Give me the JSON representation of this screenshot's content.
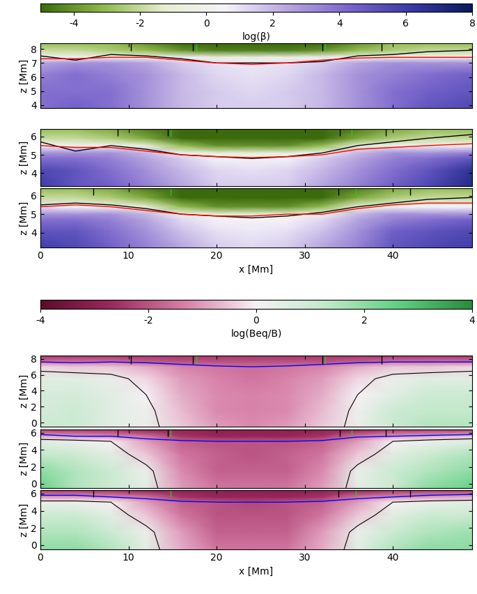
{
  "chart_data": [
    {
      "type": "heatmap",
      "colorbar": {
        "label": "log(β)",
        "range": [
          -5,
          8
        ],
        "ticks": [
          -4,
          -2,
          0,
          2,
          4,
          6,
          8
        ]
      },
      "ylabel": "z [Mm]",
      "tick_labels": "y",
      "xlim": [
        0,
        49
      ],
      "xticks": [
        0,
        10,
        20,
        30,
        40
      ],
      "ylim": [
        3.8,
        8.4
      ],
      "yticks": [
        4,
        5,
        6,
        7,
        8
      ],
      "x": [
        0,
        4,
        8,
        12,
        16,
        20,
        24,
        28,
        32,
        36,
        40,
        44,
        49
      ],
      "y": [
        3.8,
        5.0,
        6.2,
        7.0,
        7.4,
        7.9,
        8.4
      ],
      "values": [
        [
          4,
          4.5,
          4,
          3,
          2,
          1.5,
          1.5,
          1.5,
          2,
          3,
          4,
          5,
          5.5
        ],
        [
          4,
          4,
          4,
          3,
          2,
          1.5,
          1.2,
          1.5,
          2,
          3,
          4,
          4.5,
          5
        ],
        [
          3.5,
          4,
          3.5,
          3,
          2,
          1.2,
          1,
          1.2,
          2,
          3,
          3.5,
          4,
          4.5
        ],
        [
          2.5,
          3,
          3,
          2.5,
          1.5,
          1,
          0.8,
          1,
          1.5,
          2.5,
          3,
          3,
          3
        ],
        [
          0,
          0,
          0,
          0,
          0,
          -0.5,
          -0.5,
          -0.5,
          0,
          0,
          0,
          0,
          0
        ],
        [
          -2,
          -2,
          -2.5,
          -3,
          -4,
          -4.5,
          -4.5,
          -4.5,
          -4,
          -3,
          -2.5,
          -2,
          -2
        ],
        [
          -3,
          -3,
          -3,
          -4,
          -5,
          -5,
          -5,
          -5,
          -5,
          -4,
          -3,
          -3,
          -3
        ]
      ],
      "lines": [
        {
          "color": "black",
          "x": [
            0,
            4,
            8,
            12,
            16,
            20,
            24,
            28,
            32,
            36,
            40,
            44,
            49
          ],
          "y": [
            7.5,
            7.2,
            7.6,
            7.5,
            7.3,
            7.0,
            7.0,
            7.0,
            7.1,
            7.5,
            7.6,
            7.8,
            7.9
          ]
        },
        {
          "color": "red",
          "x": [
            0,
            4,
            8,
            12,
            16,
            20,
            24,
            28,
            32,
            36,
            40,
            44,
            49
          ],
          "y": [
            7.3,
            7.3,
            7.4,
            7.4,
            7.2,
            7.0,
            6.9,
            7.0,
            7.2,
            7.35,
            7.4,
            7.4,
            7.4
          ]
        }
      ],
      "top_marks": [
        {
          "color": "black",
          "x": [
            10.3,
            17.3,
            32.0,
            38.7
          ]
        },
        {
          "color": "#22cc22",
          "x": [
            17.7,
            32.3
          ]
        }
      ]
    },
    {
      "type": "heatmap",
      "ylabel": "z [Mm]",
      "tick_labels": "y",
      "xlim": [
        0,
        49
      ],
      "xticks": [
        0,
        10,
        20,
        30,
        40
      ],
      "ylim": [
        3.3,
        6.4
      ],
      "yticks": [
        4,
        5,
        6
      ],
      "x": [
        0,
        4,
        8,
        12,
        16,
        20,
        24,
        28,
        32,
        36,
        40,
        44,
        49
      ],
      "y": [
        3.3,
        4.2,
        4.8,
        5.1,
        5.5,
        5.9,
        6.4
      ],
      "values": [
        [
          6,
          5,
          4.5,
          3.5,
          2.5,
          1.5,
          1.5,
          1.5,
          2.5,
          3.5,
          4.5,
          5.5,
          7
        ],
        [
          5.5,
          5,
          4,
          3,
          2,
          1.2,
          1,
          1.2,
          2,
          3,
          4,
          5,
          6.5
        ],
        [
          4,
          4,
          3.5,
          2.5,
          1.5,
          0.5,
          0.3,
          0.5,
          1.5,
          2.5,
          3.5,
          4,
          5
        ],
        [
          3,
          3,
          3,
          2,
          0,
          -1,
          -1,
          -1,
          0,
          2,
          3,
          3,
          3.5
        ],
        [
          0.5,
          0,
          0,
          -1,
          -3,
          -4,
          -4,
          -4,
          -3,
          -1,
          0,
          0,
          0.5
        ],
        [
          -2,
          -2,
          -2.5,
          -3.5,
          -5,
          -5,
          -5,
          -5,
          -5,
          -3.5,
          -2.5,
          -2,
          -2
        ],
        [
          -3,
          -3,
          -3.5,
          -4.5,
          -5,
          -5,
          -5,
          -5,
          -5,
          -4.5,
          -3.5,
          -3,
          -3
        ]
      ],
      "lines": [
        {
          "color": "black",
          "x": [
            0,
            4,
            8,
            12,
            16,
            20,
            24,
            28,
            32,
            36,
            40,
            44,
            49
          ],
          "y": [
            5.7,
            5.2,
            5.5,
            5.3,
            5.0,
            4.9,
            4.8,
            4.9,
            5.1,
            5.5,
            5.7,
            5.9,
            6.1
          ]
        },
        {
          "color": "red",
          "x": [
            0,
            4,
            8,
            12,
            16,
            20,
            24,
            28,
            32,
            36,
            40,
            44,
            49
          ],
          "y": [
            5.5,
            5.4,
            5.4,
            5.2,
            5.0,
            4.9,
            4.85,
            4.9,
            5.0,
            5.3,
            5.4,
            5.5,
            5.6
          ]
        }
      ],
      "top_marks": [
        {
          "color": "black",
          "x": [
            8.8,
            14.5,
            34.0,
            39.2
          ]
        },
        {
          "color": "#22cc22",
          "x": [
            14.8,
            35.3
          ]
        }
      ]
    },
    {
      "type": "heatmap",
      "ylabel": "z [Mm]",
      "xlabel": "x [Mm]",
      "xlim": [
        0,
        49
      ],
      "xticks": [
        0,
        10,
        20,
        30,
        40
      ],
      "ylim": [
        3.2,
        6.4
      ],
      "yticks": [
        4,
        5,
        6
      ],
      "x": [
        0,
        4,
        8,
        12,
        16,
        20,
        24,
        28,
        32,
        36,
        40,
        44,
        49
      ],
      "y": [
        3.2,
        4.1,
        4.7,
        5.0,
        5.4,
        5.9,
        6.4
      ],
      "values": [
        [
          6,
          5.5,
          4.5,
          3.5,
          2.5,
          1.5,
          1.2,
          1.5,
          2.5,
          3.5,
          5,
          5.5,
          6
        ],
        [
          5,
          5,
          4,
          3,
          1.8,
          1,
          0.8,
          1,
          1.8,
          3,
          4.5,
          5,
          5.5
        ],
        [
          4,
          4,
          3.5,
          2.5,
          1.2,
          0.5,
          0.3,
          0.5,
          1.2,
          2.5,
          3.5,
          4,
          4.5
        ],
        [
          3,
          3,
          3,
          2,
          0,
          -1,
          -1,
          -1,
          0,
          2,
          3,
          3,
          3
        ],
        [
          1,
          0.5,
          0,
          -1,
          -3,
          -4,
          -4,
          -4,
          -3,
          -1,
          0,
          0.5,
          0.5
        ],
        [
          -2,
          -2,
          -2.5,
          -3.5,
          -5,
          -5,
          -5,
          -5,
          -5,
          -3.5,
          -2.5,
          -2,
          -2
        ],
        [
          -3,
          -3,
          -3.5,
          -4.5,
          -5,
          -5,
          -5,
          -5,
          -5,
          -4.5,
          -3.5,
          -3,
          -3
        ]
      ],
      "lines": [
        {
          "color": "black",
          "x": [
            0,
            4,
            8,
            12,
            16,
            20,
            24,
            28,
            32,
            36,
            40,
            44,
            49
          ],
          "y": [
            5.5,
            5.6,
            5.5,
            5.3,
            5.0,
            4.9,
            4.8,
            4.9,
            5.1,
            5.4,
            5.6,
            5.8,
            5.9
          ]
        },
        {
          "color": "red",
          "x": [
            0,
            4,
            8,
            12,
            16,
            20,
            24,
            28,
            32,
            36,
            40,
            44,
            49
          ],
          "y": [
            5.4,
            5.5,
            5.4,
            5.2,
            5.0,
            4.9,
            4.9,
            5.0,
            5.0,
            5.3,
            5.5,
            5.6,
            5.6
          ]
        }
      ],
      "top_marks": [
        {
          "color": "black",
          "x": [
            6.0,
            33.8,
            42.0
          ]
        },
        {
          "color": "#22cc22",
          "x": [
            14.8,
            35.8
          ]
        }
      ]
    },
    {
      "type": "heatmap",
      "colorbar": {
        "label": "log(Beq/B)",
        "range": [
          -4,
          4
        ],
        "ticks": [
          -4,
          -2,
          0,
          2,
          4
        ]
      },
      "ylabel": "z [Mm]",
      "tick_labels": "y",
      "contour_level": 0,
      "xlim": [
        0,
        49
      ],
      "xticks": [
        0,
        10,
        20,
        30,
        40
      ],
      "ylim": [
        -0.5,
        8.4
      ],
      "yticks": [
        0,
        2,
        4,
        6,
        8
      ],
      "x": [
        0,
        4,
        8,
        12,
        16,
        20,
        24,
        28,
        32,
        36,
        40,
        44,
        49
      ],
      "y": [
        -0.5,
        1.5,
        3.5,
        5.5,
        7.0,
        7.6,
        8.4
      ],
      "values": [
        [
          1,
          1,
          0.5,
          0.3,
          -0.5,
          -1,
          -1.2,
          -1,
          -0.5,
          0.3,
          1,
          1.5,
          1.5
        ],
        [
          0.8,
          1,
          0.5,
          0.2,
          -0.6,
          -1.2,
          -1.3,
          -1.2,
          -0.6,
          0.2,
          1,
          1.2,
          1.2
        ],
        [
          0.8,
          0.8,
          0.5,
          0,
          -0.8,
          -1.2,
          -1.3,
          -1.2,
          -0.8,
          0,
          0.5,
          1,
          1
        ],
        [
          0.5,
          0.5,
          0.3,
          -0.3,
          -1,
          -1.3,
          -1.5,
          -1.3,
          -1,
          -0.3,
          0.3,
          0.5,
          0.5
        ],
        [
          -0.3,
          -0.5,
          -0.5,
          -0.8,
          -1.3,
          -1.5,
          -1.6,
          -1.5,
          -1.3,
          -0.8,
          -0.5,
          -0.5,
          -0.3
        ],
        [
          -1.5,
          -1.5,
          -1.5,
          -1.8,
          -2,
          -2,
          -2,
          -2,
          -2,
          -1.8,
          -1.5,
          -1.5,
          -1.5
        ],
        [
          -2.5,
          -2.5,
          -2.5,
          -2.5,
          -2.5,
          -2.5,
          -2.5,
          -2.5,
          -2.5,
          -2.5,
          -2.5,
          -2.5,
          -2.5
        ]
      ],
      "lines": [
        {
          "color": "blue",
          "x": [
            0,
            4,
            8,
            12,
            16,
            20,
            24,
            28,
            32,
            36,
            40,
            44,
            49
          ],
          "y": [
            7.6,
            7.5,
            7.6,
            7.5,
            7.3,
            7.1,
            7.0,
            7.1,
            7.3,
            7.5,
            7.6,
            7.6,
            7.6
          ]
        }
      ],
      "top_marks": [
        {
          "color": "black",
          "x": [
            10.3,
            17.3,
            32.0,
            38.7
          ]
        },
        {
          "color": "#22cc22",
          "x": [
            17.7,
            32.3
          ]
        }
      ]
    },
    {
      "type": "heatmap",
      "ylabel": "z [Mm]",
      "tick_labels": "y",
      "contour_level": 0,
      "xlim": [
        0,
        49
      ],
      "xticks": [
        0,
        10,
        20,
        30,
        40
      ],
      "ylim": [
        -0.5,
        6.4
      ],
      "yticks": [
        0,
        2,
        4,
        6
      ],
      "x": [
        0,
        4,
        8,
        12,
        16,
        20,
        24,
        28,
        32,
        36,
        40,
        44,
        49
      ],
      "y": [
        -0.5,
        1.5,
        3.5,
        5.0,
        5.6,
        6.4
      ],
      "values": [
        [
          2.5,
          1.5,
          1,
          0.5,
          -1,
          -1.5,
          -1.5,
          -1.5,
          -1,
          0.5,
          1,
          2,
          2.5
        ],
        [
          2,
          1.5,
          1,
          0.3,
          -1.2,
          -1.8,
          -1.8,
          -1.8,
          -1.2,
          0.3,
          1,
          1.5,
          2
        ],
        [
          1.2,
          1,
          0.5,
          -0.5,
          -1.5,
          -1.8,
          -2,
          -1.8,
          -1.5,
          -0.5,
          0.5,
          1,
          1.5
        ],
        [
          0.5,
          0.3,
          0,
          -1,
          -1.8,
          -2,
          -2,
          -2,
          -1.8,
          -1,
          0,
          0.3,
          0.5
        ],
        [
          -0.8,
          -1,
          -1.2,
          -1.5,
          -2.5,
          -2.8,
          -2.8,
          -2.8,
          -2.5,
          -1.5,
          -1,
          -0.8,
          -0.5
        ],
        [
          -2.5,
          -2.5,
          -2.5,
          -3,
          -3,
          -3,
          -3,
          -3,
          -3,
          -3,
          -2.5,
          -2.5,
          -2.5
        ]
      ],
      "lines": [
        {
          "color": "blue",
          "x": [
            0,
            4,
            8,
            12,
            16,
            20,
            24,
            28,
            32,
            36,
            40,
            44,
            49
          ],
          "y": [
            5.8,
            5.6,
            5.6,
            5.3,
            5.1,
            5.0,
            5.0,
            5.0,
            5.1,
            5.5,
            5.6,
            5.7,
            5.8
          ]
        }
      ],
      "top_marks": [
        {
          "color": "black",
          "x": [
            8.8,
            14.5,
            34.0,
            39.2
          ]
        },
        {
          "color": "#22cc22",
          "x": [
            14.8,
            35.3
          ]
        }
      ]
    },
    {
      "type": "heatmap",
      "ylabel": "z [Mm]",
      "xlabel": "x [Mm]",
      "contour_level": 0,
      "xlim": [
        0,
        49
      ],
      "xticks": [
        0,
        10,
        20,
        30,
        40
      ],
      "ylim": [
        -0.5,
        6.4
      ],
      "yticks": [
        0,
        2,
        4,
        6
      ],
      "x": [
        0,
        4,
        8,
        12,
        16,
        20,
        24,
        28,
        32,
        36,
        40,
        44,
        49
      ],
      "y": [
        -0.5,
        1.5,
        3.5,
        5.0,
        5.6,
        6.4
      ],
      "values": [
        [
          2,
          2,
          1.5,
          0.5,
          -0.8,
          -1.5,
          -1.5,
          -1.5,
          -0.8,
          0.5,
          1.5,
          2,
          2
        ],
        [
          1.5,
          1.5,
          1,
          0.3,
          -1,
          -1.8,
          -1.8,
          -1.8,
          -1,
          0.3,
          1,
          1.5,
          1.8
        ],
        [
          1,
          1,
          0.5,
          -0.5,
          -1.5,
          -2,
          -2,
          -2,
          -1.5,
          -0.5,
          0.5,
          1,
          1
        ],
        [
          0.3,
          0.3,
          0,
          -1,
          -1.8,
          -2,
          -2.2,
          -2,
          -1.8,
          -1,
          0,
          0.3,
          0.5
        ],
        [
          -1,
          -1,
          -1.2,
          -1.5,
          -2.5,
          -2.8,
          -2.8,
          -2.8,
          -2.5,
          -1.5,
          -1.2,
          -1,
          -0.8
        ],
        [
          -2.5,
          -2.5,
          -2.5,
          -3,
          -3,
          -3,
          -3,
          -3,
          -3,
          -3,
          -2.5,
          -2.5,
          -2.5
        ]
      ],
      "lines": [
        {
          "color": "blue",
          "x": [
            0,
            4,
            8,
            12,
            16,
            20,
            24,
            28,
            32,
            36,
            40,
            44,
            49
          ],
          "y": [
            5.8,
            5.8,
            5.6,
            5.4,
            5.1,
            5.0,
            5.0,
            5.0,
            5.1,
            5.4,
            5.6,
            5.8,
            5.9
          ]
        }
      ],
      "top_marks": [
        {
          "color": "black",
          "x": [
            6.0,
            33.8,
            42.0
          ]
        },
        {
          "color": "#22cc22",
          "x": [
            14.8,
            35.8
          ]
        }
      ]
    }
  ]
}
